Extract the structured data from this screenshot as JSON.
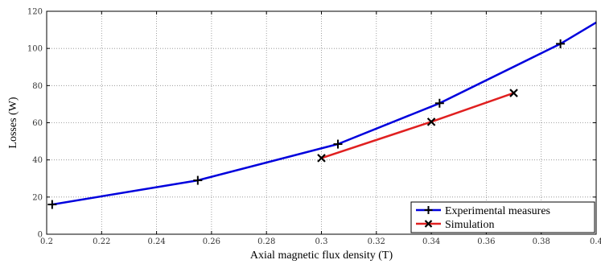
{
  "chart_data": {
    "type": "line",
    "title": "",
    "xlabel": "Axial magnetic flux density (T)",
    "ylabel": "Losses (W)",
    "xlim": [
      0.2,
      0.4
    ],
    "ylim": [
      0,
      120
    ],
    "xticks": [
      "0.2",
      "0.22",
      "0.24",
      "0.26",
      "0.28",
      "0.3",
      "0.32",
      "0.34",
      "0.36",
      "0.38",
      "0.4"
    ],
    "yticks": [
      "0",
      "20",
      "40",
      "60",
      "80",
      "100",
      "120"
    ],
    "grid": true,
    "legend_position": "bottom-right",
    "series": [
      {
        "name": "Experimental measures",
        "color": "#0000dd",
        "marker": "plus",
        "line": [
          [
            0.202,
            16
          ],
          [
            0.255,
            29
          ],
          [
            0.306,
            48.5
          ],
          [
            0.343,
            70.5
          ],
          [
            0.387,
            102.5
          ],
          [
            0.4,
            114
          ]
        ],
        "markers": [
          [
            0.202,
            16
          ],
          [
            0.255,
            29
          ],
          [
            0.306,
            48.5
          ],
          [
            0.343,
            70.5
          ],
          [
            0.387,
            102.5
          ]
        ]
      },
      {
        "name": "Simulation",
        "color": "#e02020",
        "marker": "x",
        "line": [
          [
            0.3,
            41
          ],
          [
            0.34,
            60.5
          ],
          [
            0.37,
            76
          ]
        ],
        "markers": [
          [
            0.3,
            41
          ],
          [
            0.34,
            60.5
          ],
          [
            0.37,
            76
          ]
        ]
      }
    ]
  }
}
